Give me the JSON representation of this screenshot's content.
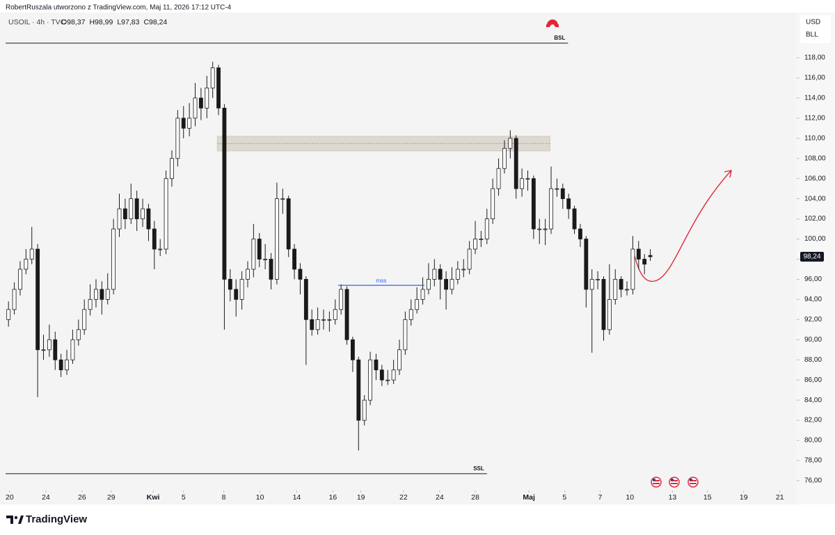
{
  "chart_data": {
    "type": "candlestick",
    "header": {
      "author": "RobertRuszala utworzono z TradingView.com, Maj 11, 2026 17:12 UTC-4",
      "symbol": "USOIL · 4h · TVC",
      "ohlc": [
        "O98,37",
        "H98,99",
        "L97,83",
        "C98,24"
      ]
    },
    "currency": "USD",
    "unit": "BLL",
    "footer": "TradingView",
    "up_color": "#ffffff",
    "down_color": "#1a1a1a",
    "series": {
      "open": [
        92,
        93,
        95,
        97,
        98,
        99,
        89,
        89,
        90,
        88,
        87,
        88,
        90,
        91,
        93,
        94,
        95,
        94,
        95,
        101,
        103,
        102,
        104,
        102,
        103,
        101,
        99,
        99,
        106,
        108,
        112,
        111,
        112,
        114,
        113,
        115,
        117,
        113,
        96,
        95,
        94,
        96,
        97,
        100,
        98,
        98,
        96,
        104,
        104,
        99,
        97,
        96,
        92,
        91,
        92,
        92,
        92,
        93,
        95,
        90,
        88,
        82,
        84,
        88,
        87,
        86,
        86,
        87,
        89,
        92,
        93,
        94,
        95,
        96,
        97,
        96,
        95,
        96,
        97,
        97,
        99,
        100,
        100,
        102,
        105,
        107,
        109,
        110,
        105,
        106,
        106,
        101,
        101,
        101,
        105,
        105,
        104,
        103,
        101,
        100,
        95,
        96,
        96,
        91,
        94,
        96,
        95,
        95,
        99,
        98,
        98.37
      ],
      "high": [
        93.8,
        95.7,
        97.8,
        99,
        101.2,
        99.5,
        90.5,
        91.5,
        90.8,
        88.6,
        89,
        91,
        92,
        94,
        95.5,
        96,
        95.8,
        96.6,
        102,
        104.5,
        104,
        105.5,
        104.8,
        104,
        103.5,
        101.8,
        100,
        106.8,
        108.8,
        112.8,
        113.2,
        113.5,
        115.5,
        115,
        116.2,
        117.6,
        117.3,
        113.4,
        97,
        96,
        96.8,
        97.8,
        101.5,
        100.6,
        99.5,
        98.6,
        105.6,
        105,
        104.3,
        99.5,
        97.6,
        96.3,
        93,
        93.2,
        93,
        92.8,
        94,
        95.5,
        95.3,
        90.3,
        88.3,
        84.5,
        88.8,
        88.6,
        87.5,
        87,
        88,
        90,
        92.8,
        94,
        95.2,
        96.2,
        97.6,
        98,
        97.5,
        96.8,
        97.2,
        97.8,
        98,
        99.8,
        101.8,
        100.8,
        103,
        106,
        108,
        109.8,
        110.8,
        110.3,
        107,
        106.8,
        106.3,
        102,
        102,
        107.2,
        106,
        105.5,
        104.5,
        103.3,
        101.5,
        100.3,
        97,
        96.8,
        96.3,
        97.5,
        97,
        96.3,
        95.8,
        100.3,
        99.8,
        98.5,
        98.99
      ],
      "low": [
        91.3,
        92.5,
        94.4,
        96.5,
        97.5,
        84.3,
        88,
        88.3,
        87,
        86.3,
        86.5,
        87.6,
        89.4,
        90.5,
        92.4,
        93.2,
        92.5,
        93.5,
        94.5,
        100.2,
        101,
        101.5,
        100.8,
        101.2,
        99.8,
        97,
        98.3,
        98.5,
        105.2,
        107.2,
        110,
        110.2,
        111.2,
        111.8,
        112,
        114,
        112.3,
        91,
        93.8,
        92.3,
        93,
        95.2,
        96.2,
        97.2,
        97,
        95,
        95.5,
        102.5,
        98.2,
        96,
        94.5,
        87.5,
        90.4,
        90.5,
        91,
        90.8,
        91.5,
        92.5,
        89.5,
        86.8,
        79,
        81.5,
        83.5,
        86,
        85.4,
        85.5,
        85.6,
        86.5,
        88.5,
        91.4,
        92.6,
        93.5,
        94.5,
        95.3,
        94,
        93,
        94.5,
        95.5,
        96.2,
        96.5,
        98.5,
        99.2,
        99.5,
        101.5,
        104.3,
        106.5,
        108,
        104,
        104.2,
        104.8,
        100,
        99.5,
        99.4,
        100.5,
        104.2,
        103,
        102,
        100.5,
        99.2,
        93.2,
        88.7,
        95,
        89.9,
        90.5,
        93.5,
        94.2,
        94.4,
        94.5,
        97,
        96.5,
        97.83
      ],
      "close": [
        93,
        95,
        97,
        98,
        99,
        89,
        89,
        90,
        88,
        87,
        88,
        90,
        91,
        93,
        94,
        95,
        94,
        95,
        101,
        103,
        102,
        104,
        102,
        103,
        101,
        99,
        99,
        106,
        108,
        112,
        111,
        112,
        114,
        113,
        115,
        117,
        113,
        96,
        95,
        94,
        96,
        97,
        100,
        98,
        98,
        96,
        104,
        104,
        99,
        97,
        96,
        92,
        91,
        92,
        92,
        92,
        93,
        95,
        90,
        88,
        82,
        84,
        88,
        87,
        86,
        86,
        87,
        89,
        92,
        93,
        94,
        95,
        96,
        97,
        96,
        95,
        96,
        97,
        97,
        99,
        100,
        100,
        102,
        105,
        107,
        109,
        110,
        105,
        106,
        106,
        101,
        101,
        101,
        105,
        105,
        104,
        103,
        101,
        100,
        95,
        96,
        96,
        91,
        94,
        96,
        95,
        95,
        99,
        98,
        97.5,
        98.24
      ]
    },
    "last_price_label": "98,24",
    "xlim": [
      -0.5,
      134.5
    ],
    "xticks": [
      {
        "value": 0.2,
        "label": "20"
      },
      {
        "value": 6.4,
        "label": "24"
      },
      {
        "value": 12.6,
        "label": "26"
      },
      {
        "value": 17.6,
        "label": "29"
      },
      {
        "value": 24.8,
        "label": "Kwi",
        "bold": true
      },
      {
        "value": 30.0,
        "label": "5"
      },
      {
        "value": 36.9,
        "label": "8"
      },
      {
        "value": 43.1,
        "label": "10"
      },
      {
        "value": 49.4,
        "label": "14"
      },
      {
        "value": 55.6,
        "label": "16"
      },
      {
        "value": 60.4,
        "label": "19"
      },
      {
        "value": 67.7,
        "label": "22"
      },
      {
        "value": 73.9,
        "label": "24"
      },
      {
        "value": 80.0,
        "label": "28"
      },
      {
        "value": 89.2,
        "label": "Maj",
        "bold": true
      },
      {
        "value": 95.3,
        "label": "5"
      },
      {
        "value": 101.4,
        "label": "7"
      },
      {
        "value": 106.5,
        "label": "10"
      },
      {
        "value": 113.8,
        "label": "13"
      },
      {
        "value": 119.8,
        "label": "15"
      },
      {
        "value": 126.0,
        "label": "19"
      },
      {
        "value": 132.2,
        "label": "21"
      }
    ],
    "ylim": [
      75.03,
      122.49
    ],
    "yticks": [
      {
        "value": 76,
        "label": "76,00"
      },
      {
        "value": 78,
        "label": "78,00"
      },
      {
        "value": 80,
        "label": "80,00"
      },
      {
        "value": 82,
        "label": "82,00"
      },
      {
        "value": 84,
        "label": "84,00"
      },
      {
        "value": 86,
        "label": "86,00"
      },
      {
        "value": 88,
        "label": "88,00"
      },
      {
        "value": 90,
        "label": "90,00"
      },
      {
        "value": 92,
        "label": "92,00"
      },
      {
        "value": 94,
        "label": "94,00"
      },
      {
        "value": 96,
        "label": "96,00"
      },
      {
        "value": 98,
        "label": "98,00"
      },
      {
        "value": 100,
        "label": "100,00"
      },
      {
        "value": 102,
        "label": "102,00"
      },
      {
        "value": 104,
        "label": "104,00"
      },
      {
        "value": 106,
        "label": "106,00"
      },
      {
        "value": 108,
        "label": "108,00"
      },
      {
        "value": 110,
        "label": "110,00"
      },
      {
        "value": 112,
        "label": "112,00"
      },
      {
        "value": 114,
        "label": "114,00"
      },
      {
        "value": 116,
        "label": "116,00"
      },
      {
        "value": 118,
        "label": "118,00"
      }
    ],
    "levels": [
      {
        "name": "BSL",
        "value": 119.45,
        "start": -0.5,
        "end": 95.9
      },
      {
        "name": "SSL",
        "value": 76.7,
        "start": -0.5,
        "end": 82.0
      }
    ],
    "zone": {
      "top": 110.2,
      "bottom": 108.75,
      "start": 35.8,
      "end": 92.8
    },
    "mss": {
      "name": "mss",
      "value": 95.4,
      "start": 56.5,
      "end": 71.3
    }
  }
}
